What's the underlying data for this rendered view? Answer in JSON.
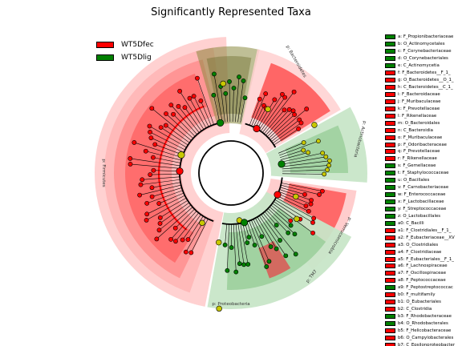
{
  "title": "Significantly Represented Taxa",
  "colors": {
    "WT5Dfec": "#ff0000",
    "WT5Dlig": "#008000",
    "nonsignificant": "#c8c800",
    "shade_red": "#ffcccc",
    "shade_green": "#c8e6c8"
  },
  "legend": [
    {
      "label": "WT5Dfec",
      "color": "#ff0000"
    },
    {
      "label": "WT5Dlig",
      "color": "#008000"
    }
  ],
  "clade_labels": [
    {
      "text": "p: Firmicutes",
      "group": "WT5Dfec"
    },
    {
      "text": "p: Bacteroidetes",
      "group": "WT5Dfec"
    },
    {
      "text": "p: Actinobacteria",
      "group": "WT5Dlig"
    },
    {
      "text": "p: Verrucomicrobia",
      "group": "WT5Dfec"
    },
    {
      "text": "p: Proteobacteria",
      "group": "WT5Dlig"
    },
    {
      "text": "p: TM7",
      "group": "WT5Dfec"
    }
  ],
  "taxa": [
    {
      "key": "a",
      "label": "a: F_Propionibacteriaceae",
      "group": "WT5Dlig"
    },
    {
      "key": "b",
      "label": "b: O_Actinomycetales",
      "group": "WT5Dlig"
    },
    {
      "key": "c",
      "label": "c: F_Corynebacteriaceae",
      "group": "WT5Dlig"
    },
    {
      "key": "d",
      "label": "d: O_Corynebacteriales",
      "group": "WT5Dlig"
    },
    {
      "key": "e",
      "label": "e: C_Actinomycetia",
      "group": "WT5Dlig"
    },
    {
      "key": "f",
      "label": "f: F_Bacteroidetes__F_1_",
      "group": "WT5Dfec"
    },
    {
      "key": "g",
      "label": "g: O_Bacteroidetes__O_1_",
      "group": "WT5Dfec"
    },
    {
      "key": "h",
      "label": "h: C_Bacteroidetes__C_1_",
      "group": "WT5Dfec"
    },
    {
      "key": "i",
      "label": "i: F_Bacteroidaceae",
      "group": "WT5Dfec"
    },
    {
      "key": "j",
      "label": "j: F_Muribaculaceae",
      "group": "WT5Dfec"
    },
    {
      "key": "k",
      "label": "k: F_Prevotellaceae",
      "group": "WT5Dfec"
    },
    {
      "key": "l",
      "label": "l: F_Rikenellaceae",
      "group": "WT5Dfec"
    },
    {
      "key": "m",
      "label": "m: O_Bacteroidales",
      "group": "WT5Dfec"
    },
    {
      "key": "n",
      "label": "n: C_Bacteroidia",
      "group": "WT5Dfec"
    },
    {
      "key": "o",
      "label": "o: F_Muribaculaceae",
      "group": "WT5Dfec"
    },
    {
      "key": "p",
      "label": "p: F_Odoribacteraceae",
      "group": "WT5Dfec"
    },
    {
      "key": "q",
      "label": "q: F_Prevotellaceae",
      "group": "WT5Dfec"
    },
    {
      "key": "r",
      "label": "r: F_Rikenellaceae",
      "group": "WT5Dfec"
    },
    {
      "key": "s",
      "label": "s: F_Gemellaceae",
      "group": "WT5Dlig"
    },
    {
      "key": "t",
      "label": "t: F_Staphylococcaceae",
      "group": "WT5Dlig"
    },
    {
      "key": "u",
      "label": "u: O_Bacillales",
      "group": "WT5Dlig"
    },
    {
      "key": "v",
      "label": "v: F_Carnobacteriaceae",
      "group": "WT5Dlig"
    },
    {
      "key": "w",
      "label": "w: F_Enterococcaceae",
      "group": "WT5Dlig"
    },
    {
      "key": "x",
      "label": "x: F_Lactobacillaceae",
      "group": "WT5Dlig"
    },
    {
      "key": "y",
      "label": "y: F_Streptococcaceae",
      "group": "WT5Dlig"
    },
    {
      "key": "z",
      "label": "z: O_Lactobacillales",
      "group": "WT5Dlig"
    },
    {
      "key": "a0",
      "label": "a0: C_Bacilli",
      "group": "WT5Dlig"
    },
    {
      "key": "a1",
      "label": "a1: F_Clostridiales__F_1_",
      "group": "WT5Dfec"
    },
    {
      "key": "a2",
      "label": "a2: F_Eubacteriaceae__XV",
      "group": "WT5Dfec"
    },
    {
      "key": "a3",
      "label": "a3: O_Clostridiales",
      "group": "WT5Dfec"
    },
    {
      "key": "a4",
      "label": "a4: F_Clostridiaceae",
      "group": "WT5Dfec"
    },
    {
      "key": "a5",
      "label": "a5: F_Eubacteriales__F_1_",
      "group": "WT5Dfec"
    },
    {
      "key": "a6",
      "label": "a6: F_Lachnospiraceae",
      "group": "WT5Dfec"
    },
    {
      "key": "a7",
      "label": "a7: F_Oscillospiraceae",
      "group": "WT5Dfec"
    },
    {
      "key": "a8",
      "label": "a8: F_Peptococcaceae",
      "group": "WT5Dfec"
    },
    {
      "key": "a9",
      "label": "a9: F_Peptostreptococcac",
      "group": "WT5Dlig"
    },
    {
      "key": "b0",
      "label": "b0: F_multifamily",
      "group": "WT5Dfec"
    },
    {
      "key": "b1",
      "label": "b1: O_Eubacteriales",
      "group": "WT5Dfec"
    },
    {
      "key": "b2",
      "label": "b2: C_Clostridia",
      "group": "WT5Dfec"
    },
    {
      "key": "b3",
      "label": "b3: F_Rhodobacteraceae",
      "group": "WT5Dlig"
    },
    {
      "key": "b4",
      "label": "b4: O_Rhodobacterales",
      "group": "WT5Dlig"
    },
    {
      "key": "b5",
      "label": "b5: F_Helicobacteraceae",
      "group": "WT5Dfec"
    },
    {
      "key": "b6",
      "label": "b6: O_Campylobacterales",
      "group": "WT5Dfec"
    },
    {
      "key": "b7",
      "label": "b7: C_Epsilonproteobacter",
      "group": "WT5Dfec"
    }
  ]
}
